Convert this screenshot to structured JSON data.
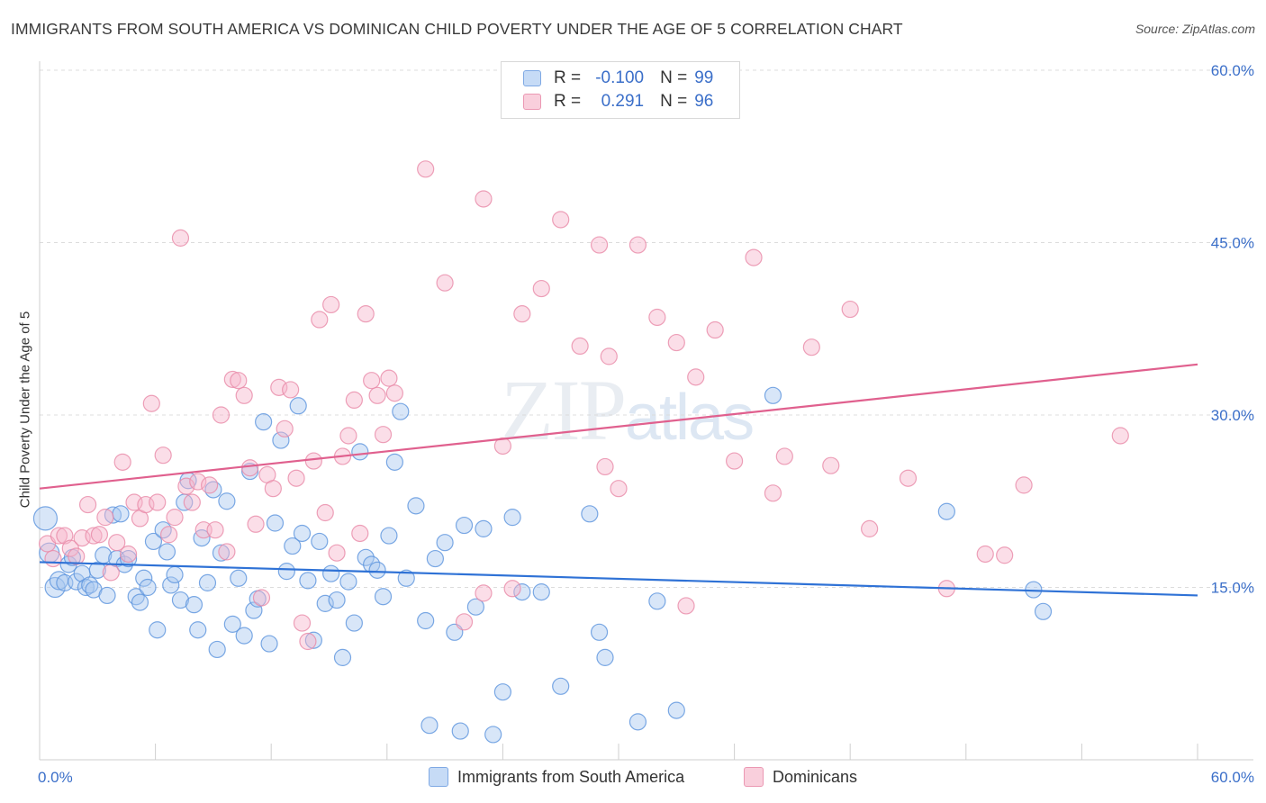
{
  "title": "IMMIGRANTS FROM SOUTH AMERICA VS DOMINICAN CHILD POVERTY UNDER THE AGE OF 5 CORRELATION CHART",
  "source": "Source: ZipAtlas.com",
  "watermark": {
    "zip": "ZIP",
    "atlas": "atlas"
  },
  "stats": [
    {
      "r_label": "R =",
      "r_value": "-0.100",
      "n_label": "N =",
      "n_value": "99",
      "color": "#a9c8f0"
    },
    {
      "r_label": "R =",
      "r_value": "0.291",
      "n_label": "N =",
      "n_value": "96",
      "color": "#f6b6cb"
    }
  ],
  "legend": [
    {
      "label": "Immigrants from South America",
      "color": "#a9c8f0"
    },
    {
      "label": "Dominicans",
      "color": "#f6b6cb"
    }
  ],
  "chart_data": {
    "type": "scatter",
    "title": "IMMIGRANTS FROM SOUTH AMERICA VS DOMINICAN CHILD POVERTY UNDER THE AGE OF 5 CORRELATION CHART",
    "xlabel": "",
    "ylabel": "Child Poverty Under the Age of 5",
    "xlim": [
      0,
      60
    ],
    "ylim": [
      0,
      60
    ],
    "x_tick_labels": [
      "0.0%",
      "60.0%"
    ],
    "y_ticks": [
      15,
      30,
      45,
      60
    ],
    "y_tick_labels": [
      "15.0%",
      "30.0%",
      "45.0%",
      "60.0%"
    ],
    "grid": true,
    "legend_position": "bottom",
    "series": [
      {
        "name": "Immigrants from South America",
        "color": "#5b93dd",
        "fill": "#a9c8f0",
        "trend": {
          "x": [
            0,
            60
          ],
          "y": [
            17.2,
            14.3
          ],
          "color": "#2f72d6"
        },
        "points": [
          [
            0.3,
            21.0
          ],
          [
            0.5,
            18.0
          ],
          [
            0.8,
            15.0
          ],
          [
            1.0,
            15.6
          ],
          [
            1.3,
            15.4
          ],
          [
            1.5,
            17.0
          ],
          [
            1.7,
            17.6
          ],
          [
            1.9,
            15.5
          ],
          [
            2.2,
            16.2
          ],
          [
            2.4,
            15.0
          ],
          [
            2.6,
            15.2
          ],
          [
            2.8,
            14.8
          ],
          [
            3.0,
            16.5
          ],
          [
            3.3,
            17.8
          ],
          [
            3.5,
            14.3
          ],
          [
            3.8,
            21.3
          ],
          [
            4.0,
            17.5
          ],
          [
            4.2,
            21.4
          ],
          [
            4.4,
            17.0
          ],
          [
            4.6,
            17.5
          ],
          [
            5.0,
            14.2
          ],
          [
            5.2,
            13.7
          ],
          [
            5.4,
            15.8
          ],
          [
            5.6,
            15.0
          ],
          [
            5.9,
            19.0
          ],
          [
            6.1,
            11.3
          ],
          [
            6.4,
            20.0
          ],
          [
            6.6,
            18.1
          ],
          [
            6.8,
            15.2
          ],
          [
            7.0,
            16.1
          ],
          [
            7.3,
            13.9
          ],
          [
            7.5,
            22.4
          ],
          [
            7.7,
            24.3
          ],
          [
            8.0,
            13.5
          ],
          [
            8.2,
            11.3
          ],
          [
            8.4,
            19.3
          ],
          [
            8.7,
            15.4
          ],
          [
            9.0,
            23.5
          ],
          [
            9.2,
            9.6
          ],
          [
            9.4,
            18.0
          ],
          [
            9.7,
            22.5
          ],
          [
            10.0,
            11.8
          ],
          [
            10.3,
            15.8
          ],
          [
            10.6,
            10.8
          ],
          [
            10.9,
            25.1
          ],
          [
            11.1,
            13.0
          ],
          [
            11.3,
            14.0
          ],
          [
            11.6,
            29.4
          ],
          [
            11.9,
            10.1
          ],
          [
            12.2,
            20.6
          ],
          [
            12.5,
            27.8
          ],
          [
            12.8,
            16.4
          ],
          [
            13.1,
            18.6
          ],
          [
            13.4,
            30.8
          ],
          [
            13.6,
            19.7
          ],
          [
            13.9,
            15.6
          ],
          [
            14.2,
            10.4
          ],
          [
            14.5,
            19.0
          ],
          [
            14.8,
            13.6
          ],
          [
            15.1,
            16.2
          ],
          [
            15.4,
            13.9
          ],
          [
            15.7,
            8.9
          ],
          [
            16.0,
            15.5
          ],
          [
            16.3,
            11.9
          ],
          [
            16.6,
            26.8
          ],
          [
            16.9,
            17.6
          ],
          [
            17.2,
            17.0
          ],
          [
            17.5,
            16.5
          ],
          [
            17.8,
            14.2
          ],
          [
            18.1,
            19.5
          ],
          [
            18.4,
            25.9
          ],
          [
            18.7,
            30.3
          ],
          [
            19.0,
            15.8
          ],
          [
            19.5,
            22.1
          ],
          [
            20.0,
            12.1
          ],
          [
            20.5,
            17.5
          ],
          [
            21.0,
            18.9
          ],
          [
            21.5,
            11.1
          ],
          [
            22.0,
            20.4
          ],
          [
            22.6,
            13.3
          ],
          [
            23.0,
            20.1
          ],
          [
            23.5,
            2.2
          ],
          [
            24.5,
            21.1
          ],
          [
            25.0,
            14.6
          ],
          [
            26.0,
            14.6
          ],
          [
            27.0,
            6.4
          ],
          [
            28.5,
            21.4
          ],
          [
            29.0,
            11.1
          ],
          [
            29.3,
            8.9
          ],
          [
            31.0,
            3.3
          ],
          [
            32.0,
            13.8
          ],
          [
            33.0,
            4.3
          ],
          [
            38.0,
            31.7
          ],
          [
            47.0,
            21.6
          ],
          [
            51.5,
            14.8
          ],
          [
            52.0,
            12.9
          ],
          [
            24.0,
            5.9
          ],
          [
            21.8,
            2.5
          ],
          [
            20.2,
            3.0
          ]
        ]
      },
      {
        "name": "Dominicans",
        "color": "#e889a8",
        "fill": "#f6b6cb",
        "trend": {
          "x": [
            0,
            60
          ],
          "y": [
            23.6,
            34.4
          ],
          "color": "#e0608e"
        },
        "points": [
          [
            0.4,
            18.8
          ],
          [
            0.7,
            17.5
          ],
          [
            1.0,
            19.5
          ],
          [
            1.3,
            19.5
          ],
          [
            1.6,
            18.4
          ],
          [
            1.9,
            17.7
          ],
          [
            2.2,
            19.3
          ],
          [
            2.5,
            22.2
          ],
          [
            2.8,
            19.5
          ],
          [
            3.1,
            19.6
          ],
          [
            3.4,
            21.1
          ],
          [
            3.7,
            16.3
          ],
          [
            4.0,
            18.9
          ],
          [
            4.3,
            25.9
          ],
          [
            4.6,
            17.9
          ],
          [
            4.9,
            22.4
          ],
          [
            5.2,
            21.0
          ],
          [
            5.5,
            22.2
          ],
          [
            5.8,
            31.0
          ],
          [
            6.1,
            22.4
          ],
          [
            6.4,
            26.5
          ],
          [
            6.7,
            19.6
          ],
          [
            7.0,
            21.1
          ],
          [
            7.3,
            45.4
          ],
          [
            7.6,
            23.8
          ],
          [
            7.9,
            22.4
          ],
          [
            8.2,
            24.2
          ],
          [
            8.5,
            20.0
          ],
          [
            8.8,
            23.9
          ],
          [
            9.1,
            20.0
          ],
          [
            9.4,
            30.0
          ],
          [
            9.7,
            18.1
          ],
          [
            10.0,
            33.1
          ],
          [
            10.3,
            33.0
          ],
          [
            10.6,
            31.7
          ],
          [
            10.9,
            25.4
          ],
          [
            11.2,
            20.5
          ],
          [
            11.5,
            14.1
          ],
          [
            11.8,
            24.8
          ],
          [
            12.1,
            23.6
          ],
          [
            12.4,
            32.4
          ],
          [
            12.7,
            28.8
          ],
          [
            13.0,
            32.2
          ],
          [
            13.3,
            24.5
          ],
          [
            13.6,
            11.9
          ],
          [
            13.9,
            10.3
          ],
          [
            14.2,
            26.0
          ],
          [
            14.5,
            38.3
          ],
          [
            14.8,
            21.5
          ],
          [
            15.1,
            39.6
          ],
          [
            15.4,
            18.0
          ],
          [
            15.7,
            26.4
          ],
          [
            16.0,
            28.2
          ],
          [
            16.3,
            31.3
          ],
          [
            16.6,
            19.7
          ],
          [
            16.9,
            38.8
          ],
          [
            17.2,
            33.0
          ],
          [
            17.5,
            31.7
          ],
          [
            17.8,
            28.3
          ],
          [
            18.1,
            33.2
          ],
          [
            18.4,
            31.9
          ],
          [
            20.0,
            51.4
          ],
          [
            21.0,
            41.5
          ],
          [
            23.0,
            48.8
          ],
          [
            24.0,
            27.3
          ],
          [
            25.0,
            38.8
          ],
          [
            26.0,
            41.0
          ],
          [
            27.0,
            47.0
          ],
          [
            28.0,
            36.0
          ],
          [
            29.0,
            44.8
          ],
          [
            29.3,
            25.5
          ],
          [
            29.5,
            35.1
          ],
          [
            30.0,
            23.6
          ],
          [
            31.0,
            44.8
          ],
          [
            32.0,
            38.5
          ],
          [
            33.0,
            36.3
          ],
          [
            33.5,
            13.4
          ],
          [
            34.0,
            33.3
          ],
          [
            35.0,
            37.4
          ],
          [
            36.0,
            26.0
          ],
          [
            37.0,
            43.7
          ],
          [
            38.0,
            23.2
          ],
          [
            38.6,
            26.4
          ],
          [
            40.0,
            35.9
          ],
          [
            41.0,
            25.6
          ],
          [
            42.0,
            39.2
          ],
          [
            43.0,
            20.1
          ],
          [
            45.0,
            24.5
          ],
          [
            47.0,
            14.9
          ],
          [
            49.0,
            17.9
          ],
          [
            50.0,
            17.8
          ],
          [
            51.0,
            23.9
          ],
          [
            56.0,
            28.2
          ],
          [
            24.5,
            14.9
          ],
          [
            23.0,
            14.5
          ],
          [
            22.0,
            12.0
          ]
        ]
      }
    ]
  }
}
